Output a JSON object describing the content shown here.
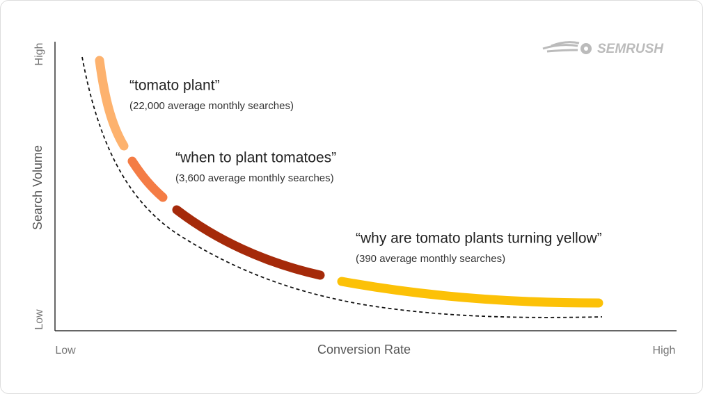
{
  "logo": "SEMRUSH",
  "y_axis": {
    "label": "Search Volume",
    "high": "High",
    "low": "Low"
  },
  "x_axis": {
    "label": "Conversion Rate",
    "low": "Low",
    "high": "High"
  },
  "annotations": [
    {
      "title": "“tomato plant”",
      "subtitle": "(22,000 average monthly searches)"
    },
    {
      "title": "“when to plant tomatoes”",
      "subtitle": "(3,600 average monthly searches)"
    },
    {
      "title": "“why are tomato plants turning yellow”",
      "subtitle": "(390 average monthly searches)"
    }
  ]
}
